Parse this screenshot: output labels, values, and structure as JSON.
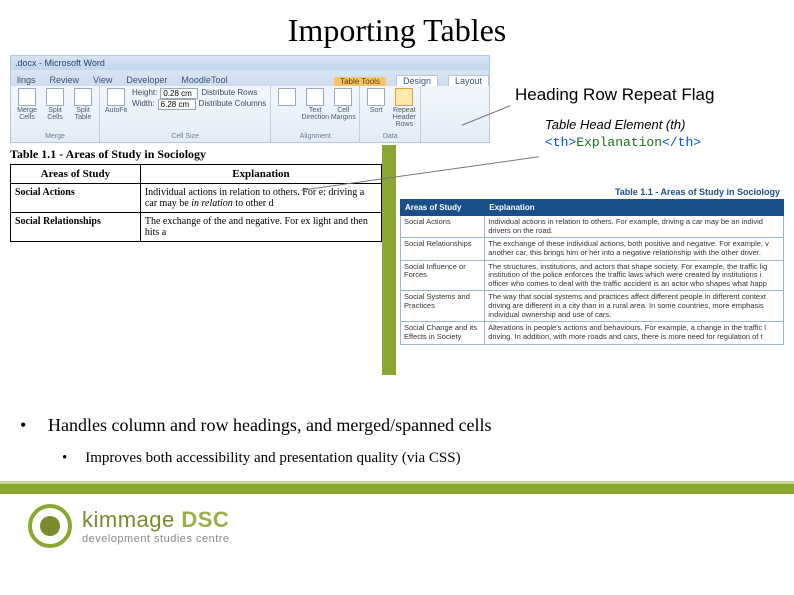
{
  "title": "Importing Tables",
  "word": {
    "titlebar": ".docx - Microsoft Word",
    "tabs": [
      "lings",
      "Review",
      "View",
      "Developer",
      "MoodleTool"
    ],
    "context_group": "Table Tools",
    "context_tabs": [
      "Design",
      "Layout"
    ],
    "groups": {
      "merge": {
        "label": "Merge",
        "items": [
          "Merge Cells",
          "Split Cells",
          "Split Table"
        ]
      },
      "cellsize": {
        "label": "Cell Size",
        "height_label": "Height:",
        "height_value": "0.28 cm",
        "width_label": "Width:",
        "width_value": "6.28 cm",
        "dist_rows": "Distribute Rows",
        "dist_cols": "Distribute Columns",
        "autofit": "AutoFit"
      },
      "alignment": {
        "label": "Alignment",
        "items": [
          "Text Direction",
          "Cell Margins"
        ]
      },
      "data": {
        "label": "Data",
        "items": [
          "Sort",
          "Repeat Header Rows"
        ]
      }
    }
  },
  "word_table": {
    "caption": "Table 1.1 - Areas of Study in Sociology",
    "col1": "Areas of Study",
    "col2": "Explanation",
    "rows": [
      {
        "h": "Social Actions",
        "e": "Individual actions in relation to others. For e: driving a car may be <em>in relation</em> to other d"
      },
      {
        "h": "Social Relationships",
        "e": "The exchange of the and negative. For ex light and then hits a"
      }
    ]
  },
  "annotations": {
    "heading_row": "Heading Row Repeat Flag",
    "th_label": "Table Head Element (th)",
    "th_code_open": "<th>",
    "th_code_text": "Explanation",
    "th_code_close": "</th>"
  },
  "moodle_table": {
    "caption": "Table 1.1 - Areas of Study in Sociology",
    "col1": "Areas of Study",
    "col2": "Explanation",
    "header_bg": "#1b4f8a",
    "rows": [
      {
        "h": "Social Actions",
        "e": "Individual actions in relation to others. For example, driving a car may be an individ drivers on the road."
      },
      {
        "h": "Social Relationships",
        "e": "The exchange of these individual actions, both positive and negative. For example, v another car, this brings him or her into a negative relationship with the other driver."
      },
      {
        "h": "Social Influence or Forces",
        "e": "The structures, institutions, and actors that shape society. For example, the traffic lig institution of the police enforces the traffic laws which were created by institutions i officer who comes to deal with the traffic accident is an actor who shapes what happ"
      },
      {
        "h": "Social Systems and Practices",
        "e": "The way that social systems and practices affect different people in different context driving are different in a city than in a rural area. In some countries, more emphasis individual ownership and use of cars."
      },
      {
        "h": "Social Change and its Effects in Society",
        "e": "Alterations in people's actions and behaviours. For example, a change in the traffic l driving. In addition, with more roads and cars, there is more need for regulation of t"
      }
    ]
  },
  "bullets": {
    "b1": "Handles column and row headings, and merged/spanned cells",
    "b2": "Improves both accessibility and presentation quality (via CSS)"
  },
  "logo": {
    "line1a": "kimmage ",
    "line1b": "DSC",
    "line2": "development studies centre",
    "ring_color": "#8aa633",
    "core_color": "#7a8a2c"
  },
  "colors": {
    "green_bar": "#8aa633",
    "footer_bar": "#8aa633"
  }
}
